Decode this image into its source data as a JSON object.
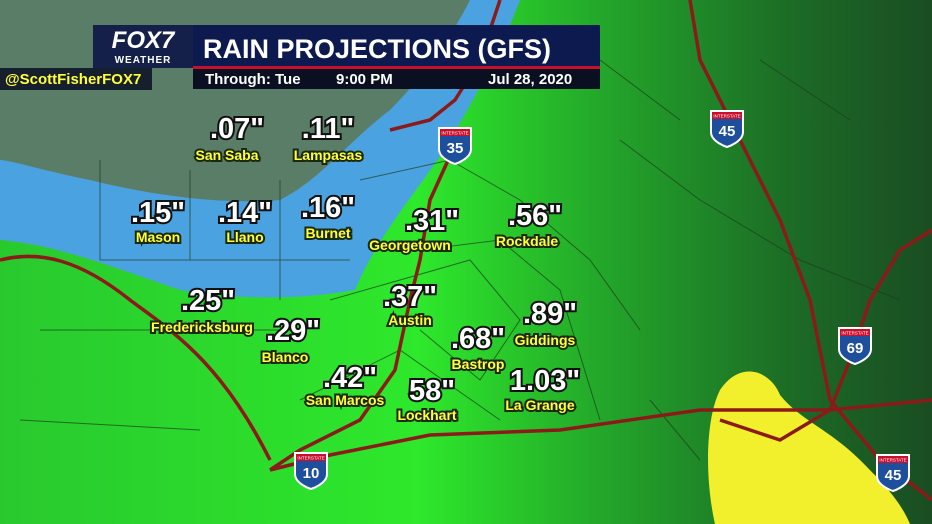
{
  "header": {
    "logo": "FOX7",
    "logo_sub": "WEATHER",
    "title": "RAIN PROJECTIONS (GFS)",
    "through": "Through: Tue",
    "time": "9:00 PM",
    "date": "Jul 28, 2020",
    "handle": "@ScottFisherFOX7"
  },
  "cities": [
    {
      "amount": ".07\"",
      "name": "San Saba"
    },
    {
      "amount": ".11\"",
      "name": "Lampasas"
    },
    {
      "amount": ".15\"",
      "name": "Mason"
    },
    {
      "amount": ".14\"",
      "name": "Llano"
    },
    {
      "amount": ".16\"",
      "name": "Burnet"
    },
    {
      "amount": ".31\"",
      "name": "Georgetown"
    },
    {
      "amount": ".56\"",
      "name": "Rockdale"
    },
    {
      "amount": ".37\"",
      "name": "Austin"
    },
    {
      "amount": ".25\"",
      "name": "Fredericksburg"
    },
    {
      "amount": ".29\"",
      "name": "Blanco"
    },
    {
      "amount": ".89\"",
      "name": "Giddings"
    },
    {
      "amount": ".68\"",
      "name": "Bastrop"
    },
    {
      "amount": ".42\"",
      "name": "San Marcos"
    },
    {
      "amount": "58\"",
      "name": "Lockhart"
    },
    {
      "amount": "1.03\"",
      "name": "La Grange"
    }
  ],
  "interstates": [
    {
      "label": "INTERSTATE",
      "number": "35"
    },
    {
      "label": "INTERSTATE",
      "number": "45"
    },
    {
      "label": "INTERSTATE",
      "number": "69"
    },
    {
      "label": "INTERSTATE",
      "number": "10"
    },
    {
      "label": "INTERSTATE",
      "number": "45"
    }
  ]
}
